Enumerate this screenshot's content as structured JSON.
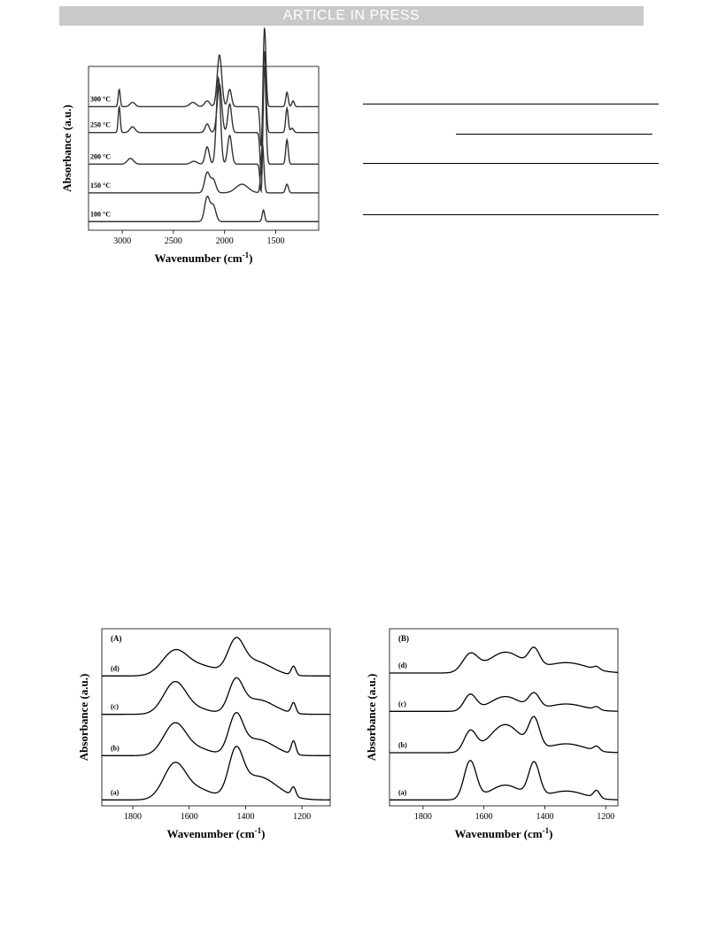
{
  "banner": "ARTICLE IN PRESS",
  "chart_data": [
    {
      "type": "line",
      "panel_label": "",
      "xlabel": "Wavenumber (cm-1)",
      "ylabel": "Absorbance (a.u.)",
      "xlim": [
        3330,
        1080
      ],
      "x_ticks": [
        3000,
        2500,
        2000,
        1500
      ],
      "grid": false,
      "series": [
        {
          "name": "100 °C",
          "baseline": 0.0,
          "peaks": [
            [
              2170,
              0.85,
              25
            ],
            [
              2110,
              0.55,
              25
            ],
            [
              1620,
              0.4,
              12
            ]
          ]
        },
        {
          "name": "150 °C",
          "baseline": 1.0,
          "peaks": [
            [
              2170,
              0.7,
              25
            ],
            [
              2110,
              0.45,
              25
            ],
            [
              1830,
              0.3,
              60
            ],
            [
              1630,
              1.7,
              14
            ],
            [
              1390,
              0.3,
              14
            ]
          ]
        },
        {
          "name": "200 °C",
          "baseline": 2.0,
          "peaks": [
            [
              2920,
              0.2,
              30
            ],
            [
              2300,
              0.1,
              30
            ],
            [
              2170,
              0.6,
              20
            ],
            [
              2060,
              3.0,
              20
            ],
            [
              1950,
              1.0,
              20
            ],
            [
              1640,
              -1.2,
              12
            ],
            [
              1610,
              3.5,
              14
            ],
            [
              1390,
              0.85,
              12
            ]
          ]
        },
        {
          "name": "250 °C",
          "baseline": 3.1,
          "peaks": [
            [
              3030,
              0.9,
              10
            ],
            [
              2900,
              0.2,
              25
            ],
            [
              2170,
              0.3,
              20
            ],
            [
              2050,
              1.7,
              22
            ],
            [
              1950,
              1.0,
              18
            ],
            [
              1640,
              -1.7,
              12
            ],
            [
              1610,
              2.9,
              14
            ],
            [
              1390,
              0.85,
              12
            ],
            [
              1340,
              0.15,
              15
            ]
          ]
        },
        {
          "name": "300 °C",
          "baseline": 4.0,
          "peaks": [
            [
              3030,
              0.6,
              10
            ],
            [
              2900,
              0.15,
              25
            ],
            [
              2310,
              0.15,
              30
            ],
            [
              2170,
              0.2,
              25
            ],
            [
              2050,
              1.8,
              22
            ],
            [
              1950,
              0.6,
              18
            ],
            [
              1640,
              -1.6,
              12
            ],
            [
              1610,
              2.8,
              14
            ],
            [
              1390,
              0.5,
              12
            ],
            [
              1330,
              0.2,
              12
            ]
          ]
        }
      ]
    },
    {
      "type": "line",
      "panel_label": "(A)",
      "xlabel": "Wavenumber (cm-1)",
      "ylabel": "Absorbance (a.u.)",
      "xlim": [
        1910,
        1100
      ],
      "x_ticks": [
        1800,
        1600,
        1400,
        1200
      ],
      "grid": false,
      "series": [
        {
          "name": "(a)",
          "baseline": 0.0,
          "peaks": [
            [
              1650,
              1.25,
              40
            ],
            [
              1560,
              0.3,
              40
            ],
            [
              1435,
              1.35,
              25
            ],
            [
              1360,
              0.8,
              70
            ],
            [
              1230,
              0.3,
              8
            ]
          ]
        },
        {
          "name": "(b)",
          "baseline": 1.5,
          "peaks": [
            [
              1650,
              1.1,
              40
            ],
            [
              1560,
              0.2,
              40
            ],
            [
              1435,
              1.2,
              25
            ],
            [
              1360,
              0.55,
              60
            ],
            [
              1230,
              0.45,
              8
            ]
          ]
        },
        {
          "name": "(c)",
          "baseline": 2.9,
          "peaks": [
            [
              1650,
              1.1,
              40
            ],
            [
              1560,
              0.15,
              40
            ],
            [
              1435,
              1.0,
              25
            ],
            [
              1360,
              0.5,
              60
            ],
            [
              1230,
              0.35,
              8
            ]
          ]
        },
        {
          "name": "(d)",
          "baseline": 4.2,
          "peaks": [
            [
              1650,
              0.85,
              45
            ],
            [
              1550,
              0.3,
              50
            ],
            [
              1435,
              1.0,
              28
            ],
            [
              1370,
              0.5,
              60
            ],
            [
              1230,
              0.3,
              8
            ]
          ]
        }
      ]
    },
    {
      "type": "line",
      "panel_label": "(B)",
      "xlabel": "Wavenumber (cm-1)",
      "ylabel": "Absorbance (a.u.)",
      "xlim": [
        1910,
        1160
      ],
      "x_ticks": [
        1800,
        1600,
        1400,
        1200
      ],
      "grid": false,
      "series": [
        {
          "name": "(a)",
          "baseline": 0.0,
          "peaks": [
            [
              1645,
              1.3,
              20
            ],
            [
              1530,
              0.5,
              50
            ],
            [
              1435,
              1.15,
              18
            ],
            [
              1330,
              0.3,
              60
            ],
            [
              1230,
              0.25,
              10
            ]
          ]
        },
        {
          "name": "(b)",
          "baseline": 1.6,
          "peaks": [
            [
              1645,
              0.7,
              20
            ],
            [
              1530,
              0.95,
              50
            ],
            [
              1435,
              1.0,
              18
            ],
            [
              1330,
              0.3,
              60
            ],
            [
              1230,
              0.15,
              10
            ]
          ]
        },
        {
          "name": "(c)",
          "baseline": 3.0,
          "peaks": [
            [
              1645,
              0.55,
              20
            ],
            [
              1530,
              0.5,
              50
            ],
            [
              1435,
              0.5,
              18
            ],
            [
              1330,
              0.25,
              60
            ],
            [
              1230,
              0.1,
              10
            ]
          ]
        },
        {
          "name": "(d)",
          "baseline": 4.3,
          "peaks": [
            [
              1645,
              0.6,
              25
            ],
            [
              1530,
              0.7,
              55
            ],
            [
              1435,
              0.6,
              18
            ],
            [
              1330,
              0.35,
              70
            ],
            [
              1230,
              0.1,
              10
            ]
          ]
        }
      ]
    }
  ]
}
